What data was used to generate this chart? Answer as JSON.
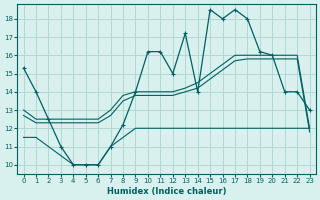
{
  "xlabel": "Humidex (Indice chaleur)",
  "bg_color": "#d8f0ee",
  "grid_color": "#b0d8d4",
  "line_color": "#006060",
  "xlim": [
    -0.5,
    23.5
  ],
  "ylim": [
    9.5,
    18.8
  ],
  "xticks": [
    0,
    1,
    2,
    3,
    4,
    5,
    6,
    7,
    8,
    9,
    10,
    11,
    12,
    13,
    14,
    15,
    16,
    17,
    18,
    19,
    20,
    21,
    22,
    23
  ],
  "yticks": [
    10,
    11,
    12,
    13,
    14,
    15,
    16,
    17,
    18
  ],
  "line1_x": [
    0,
    1,
    2,
    3,
    4,
    5,
    6,
    7,
    8,
    9,
    10,
    11,
    12,
    13,
    14,
    15,
    16,
    17,
    18,
    19,
    20,
    21,
    22,
    23
  ],
  "line1_y": [
    15.3,
    14.0,
    12.5,
    11.0,
    10.0,
    10.0,
    10.0,
    11.0,
    12.2,
    14.0,
    16.2,
    16.2,
    15.0,
    17.2,
    14.0,
    18.5,
    18.0,
    18.5,
    18.0,
    16.2,
    16.0,
    14.0,
    14.0,
    13.0
  ],
  "line2_x": [
    0,
    1,
    2,
    3,
    4,
    5,
    6,
    7,
    8,
    9,
    10,
    11,
    12,
    13,
    14,
    15,
    16,
    17,
    18,
    19,
    20,
    21,
    22,
    23
  ],
  "line2_y": [
    13.0,
    12.5,
    12.5,
    12.5,
    12.5,
    12.5,
    12.5,
    13.0,
    13.8,
    14.0,
    14.0,
    14.0,
    14.0,
    14.2,
    14.5,
    15.0,
    15.5,
    16.0,
    16.0,
    16.0,
    16.0,
    16.0,
    16.0,
    12.0
  ],
  "line3_x": [
    0,
    1,
    2,
    3,
    4,
    5,
    6,
    7,
    8,
    9,
    10,
    11,
    12,
    13,
    14,
    15,
    16,
    17,
    18,
    19,
    20,
    21,
    22,
    23
  ],
  "line3_y": [
    12.7,
    12.3,
    12.3,
    12.3,
    12.3,
    12.3,
    12.3,
    12.7,
    13.5,
    13.8,
    13.8,
    13.8,
    13.8,
    14.0,
    14.2,
    14.7,
    15.2,
    15.7,
    15.8,
    15.8,
    15.8,
    15.8,
    15.8,
    11.8
  ],
  "line4_x": [
    0,
    1,
    2,
    3,
    4,
    5,
    6,
    7,
    8,
    9,
    10,
    11,
    12,
    13,
    14,
    15,
    16,
    17,
    18,
    19,
    20,
    21,
    22,
    23
  ],
  "line4_y": [
    11.5,
    11.5,
    11.0,
    10.5,
    10.0,
    10.0,
    10.0,
    11.0,
    11.5,
    12.0,
    12.0,
    12.0,
    12.0,
    12.0,
    12.0,
    12.0,
    12.0,
    12.0,
    12.0,
    12.0,
    12.0,
    12.0,
    12.0,
    12.0
  ]
}
